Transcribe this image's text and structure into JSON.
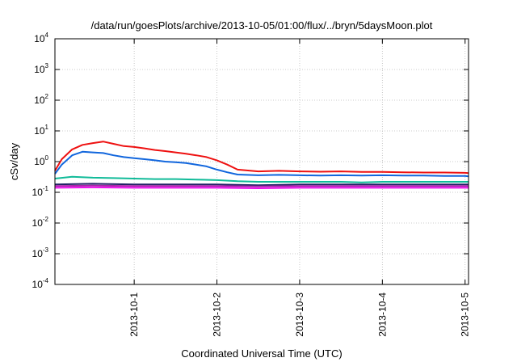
{
  "chart_data": {
    "type": "line",
    "title": "/data/run/goesPlots/archive/2013-10-05/01:00/flux/../bryn/5daysMoon.plot",
    "xlabel": "Coordinated Universal Time (UTC)",
    "ylabel": "cSv/day",
    "yscale": "log",
    "ylim": [
      0.0001,
      10000
    ],
    "y_ticks": [
      {
        "base": "10",
        "exp": "4",
        "value": 10000
      },
      {
        "base": "10",
        "exp": "3",
        "value": 1000
      },
      {
        "base": "10",
        "exp": "2",
        "value": 100
      },
      {
        "base": "10",
        "exp": "1",
        "value": 10
      },
      {
        "base": "10",
        "exp": "0",
        "value": 1
      },
      {
        "base": "10",
        "exp": "-1",
        "value": 0.1
      },
      {
        "base": "10",
        "exp": "-2",
        "value": 0.01
      },
      {
        "base": "10",
        "exp": "-3",
        "value": 0.001
      },
      {
        "base": "10",
        "exp": "-4",
        "value": 0.0001
      }
    ],
    "x_range": [
      "2013-09-30 01:00",
      "2013-10-05 01:00"
    ],
    "x_ticks": [
      {
        "label": "2013-10-1",
        "value": "2013-10-01 00:00"
      },
      {
        "label": "2013-10-2",
        "value": "2013-10-02 00:00"
      },
      {
        "label": "2013-10-3",
        "value": "2013-10-03 00:00"
      },
      {
        "label": "2013-10-4",
        "value": "2013-10-04 00:00"
      },
      {
        "label": "2013-10-5",
        "value": "2013-10-05 00:00"
      }
    ],
    "grid": true,
    "legend": "none",
    "series": [
      {
        "color": "#ee1111",
        "x": [
          "2013-09-30 01:00",
          "2013-09-30 03:00",
          "2013-09-30 06:00",
          "2013-09-30 09:00",
          "2013-09-30 12:00",
          "2013-09-30 15:00",
          "2013-09-30 18:00",
          "2013-09-30 21:00",
          "2013-10-01 00:00",
          "2013-10-01 03:00",
          "2013-10-01 06:00",
          "2013-10-01 09:00",
          "2013-10-01 12:00",
          "2013-10-01 15:00",
          "2013-10-01 18:00",
          "2013-10-01 21:00",
          "2013-10-02 00:00",
          "2013-10-02 03:00",
          "2013-10-02 06:00",
          "2013-10-02 12:00",
          "2013-10-02 18:00",
          "2013-10-03 00:00",
          "2013-10-03 06:00",
          "2013-10-03 12:00",
          "2013-10-03 18:00",
          "2013-10-04 00:00",
          "2013-10-04 06:00",
          "2013-10-04 12:00",
          "2013-10-04 18:00",
          "2013-10-05 00:00",
          "2013-10-05 01:00"
        ],
        "y": [
          0.5,
          1.2,
          2.5,
          3.5,
          4.0,
          4.5,
          3.8,
          3.2,
          3.0,
          2.7,
          2.4,
          2.2,
          2.0,
          1.8,
          1.6,
          1.4,
          1.1,
          0.8,
          0.55,
          0.48,
          0.5,
          0.48,
          0.47,
          0.48,
          0.46,
          0.46,
          0.45,
          0.44,
          0.44,
          0.43,
          0.42
        ]
      },
      {
        "color": "#1166dd",
        "x": [
          "2013-09-30 01:00",
          "2013-09-30 03:00",
          "2013-09-30 06:00",
          "2013-09-30 09:00",
          "2013-09-30 12:00",
          "2013-09-30 15:00",
          "2013-09-30 18:00",
          "2013-09-30 21:00",
          "2013-10-01 00:00",
          "2013-10-01 03:00",
          "2013-10-01 06:00",
          "2013-10-01 09:00",
          "2013-10-01 12:00",
          "2013-10-01 15:00",
          "2013-10-01 18:00",
          "2013-10-01 21:00",
          "2013-10-02 00:00",
          "2013-10-02 03:00",
          "2013-10-02 06:00",
          "2013-10-02 12:00",
          "2013-10-02 18:00",
          "2013-10-03 00:00",
          "2013-10-03 06:00",
          "2013-10-03 12:00",
          "2013-10-03 18:00",
          "2013-10-04 00:00",
          "2013-10-04 06:00",
          "2013-10-04 12:00",
          "2013-10-04 18:00",
          "2013-10-05 00:00",
          "2013-10-05 01:00"
        ],
        "y": [
          0.4,
          0.8,
          1.6,
          2.1,
          2.0,
          1.9,
          1.6,
          1.4,
          1.3,
          1.2,
          1.1,
          1.0,
          0.95,
          0.9,
          0.8,
          0.7,
          0.55,
          0.45,
          0.38,
          0.36,
          0.37,
          0.36,
          0.35,
          0.36,
          0.35,
          0.36,
          0.35,
          0.35,
          0.34,
          0.34,
          0.33
        ]
      },
      {
        "color": "#11bb99",
        "x": [
          "2013-09-30 01:00",
          "2013-09-30 06:00",
          "2013-09-30 12:00",
          "2013-09-30 18:00",
          "2013-10-01 00:00",
          "2013-10-01 06:00",
          "2013-10-01 12:00",
          "2013-10-01 18:00",
          "2013-10-02 00:00",
          "2013-10-02 06:00",
          "2013-10-02 12:00",
          "2013-10-02 18:00",
          "2013-10-03 00:00",
          "2013-10-03 06:00",
          "2013-10-03 12:00",
          "2013-10-03 18:00",
          "2013-10-04 00:00",
          "2013-10-04 06:00",
          "2013-10-04 12:00",
          "2013-10-04 18:00",
          "2013-10-05 01:00"
        ],
        "y": [
          0.28,
          0.32,
          0.3,
          0.29,
          0.28,
          0.27,
          0.27,
          0.26,
          0.25,
          0.23,
          0.22,
          0.22,
          0.22,
          0.22,
          0.22,
          0.21,
          0.22,
          0.22,
          0.22,
          0.22,
          0.22
        ]
      },
      {
        "color": "#222266",
        "x": [
          "2013-09-30 01:00",
          "2013-09-30 12:00",
          "2013-10-01 00:00",
          "2013-10-01 12:00",
          "2013-10-02 00:00",
          "2013-10-02 12:00",
          "2013-10-03 00:00",
          "2013-10-03 12:00",
          "2013-10-04 00:00",
          "2013-10-04 12:00",
          "2013-10-05 01:00"
        ],
        "y": [
          0.18,
          0.19,
          0.18,
          0.18,
          0.18,
          0.17,
          0.18,
          0.18,
          0.18,
          0.18,
          0.18
        ]
      },
      {
        "color": "#aa22aa",
        "x": [
          "2013-09-30 01:00",
          "2013-09-30 12:00",
          "2013-10-01 00:00",
          "2013-10-01 12:00",
          "2013-10-02 00:00",
          "2013-10-02 12:00",
          "2013-10-03 00:00",
          "2013-10-03 12:00",
          "2013-10-04 00:00",
          "2013-10-04 12:00",
          "2013-10-05 01:00"
        ],
        "y": [
          0.16,
          0.165,
          0.16,
          0.16,
          0.16,
          0.155,
          0.16,
          0.16,
          0.16,
          0.16,
          0.16
        ]
      },
      {
        "color": "#ee11ee",
        "x": [
          "2013-09-30 01:00",
          "2013-09-30 12:00",
          "2013-10-01 00:00",
          "2013-10-01 12:00",
          "2013-10-02 00:00",
          "2013-10-02 12:00",
          "2013-10-03 00:00",
          "2013-10-03 12:00",
          "2013-10-04 00:00",
          "2013-10-04 12:00",
          "2013-10-05 01:00"
        ],
        "y": [
          0.14,
          0.145,
          0.14,
          0.14,
          0.14,
          0.135,
          0.14,
          0.14,
          0.14,
          0.14,
          0.14
        ]
      }
    ]
  }
}
